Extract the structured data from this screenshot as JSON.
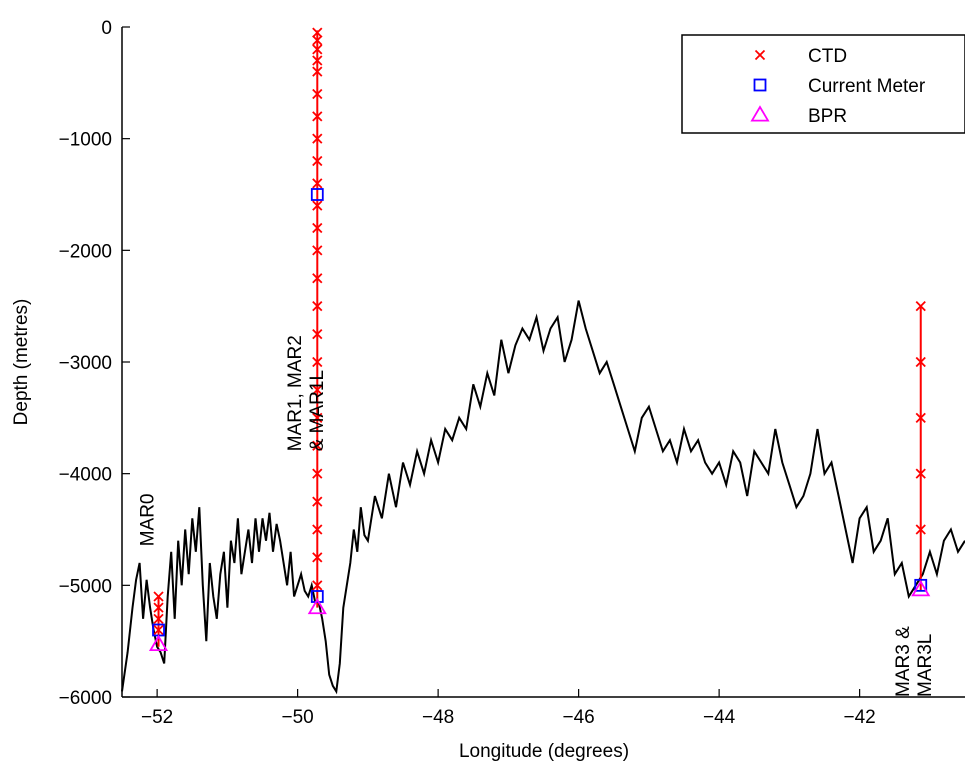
{
  "chart_data": {
    "type": "line",
    "title": "",
    "xlabel": "Longitude (degrees)",
    "ylabel": "Depth (metres)",
    "xlim": [
      -52.5,
      -40.5
    ],
    "ylim": [
      -6000,
      0
    ],
    "xticks": [
      -52,
      -50,
      -48,
      -46,
      -44,
      -42
    ],
    "xtick_labels": [
      "−52",
      "−50",
      "−48",
      "−46",
      "−44",
      "−42"
    ],
    "yticks": [
      0,
      -1000,
      -2000,
      -3000,
      -4000,
      -5000,
      -6000
    ],
    "ytick_labels": [
      "0",
      "−1000",
      "−2000",
      "−3000",
      "−4000",
      "−5000",
      "−6000"
    ],
    "grid": false,
    "legend": {
      "placement": "top-right",
      "entries": [
        "CTD",
        "Current Meter",
        "BPR"
      ]
    },
    "series": [
      {
        "name": "",
        "kind": "bathymetry",
        "color": "#000000",
        "x": [
          -52.5,
          -52.42,
          -52.35,
          -52.3,
          -52.25,
          -52.2,
          -52.15,
          -52.1,
          -52.05,
          -52.0,
          -51.95,
          -51.9,
          -51.85,
          -51.8,
          -51.75,
          -51.7,
          -51.65,
          -51.6,
          -51.55,
          -51.5,
          -51.45,
          -51.4,
          -51.35,
          -51.3,
          -51.25,
          -51.2,
          -51.15,
          -51.1,
          -51.05,
          -51.0,
          -50.95,
          -50.9,
          -50.85,
          -50.8,
          -50.75,
          -50.7,
          -50.65,
          -50.6,
          -50.55,
          -50.5,
          -50.45,
          -50.4,
          -50.35,
          -50.3,
          -50.25,
          -50.2,
          -50.15,
          -50.1,
          -50.05,
          -50.0,
          -49.95,
          -49.9,
          -49.85,
          -49.8,
          -49.75,
          -49.7,
          -49.65,
          -49.6,
          -49.55,
          -49.5,
          -49.45,
          -49.4,
          -49.35,
          -49.3,
          -49.25,
          -49.2,
          -49.15,
          -49.1,
          -49.05,
          -49.0,
          -48.9,
          -48.8,
          -48.7,
          -48.6,
          -48.5,
          -48.4,
          -48.3,
          -48.2,
          -48.1,
          -48.0,
          -47.9,
          -47.8,
          -47.7,
          -47.6,
          -47.5,
          -47.4,
          -47.3,
          -47.2,
          -47.1,
          -47.0,
          -46.9,
          -46.8,
          -46.7,
          -46.6,
          -46.5,
          -46.4,
          -46.3,
          -46.2,
          -46.1,
          -46.0,
          -45.9,
          -45.8,
          -45.7,
          -45.6,
          -45.5,
          -45.4,
          -45.3,
          -45.2,
          -45.1,
          -45.0,
          -44.9,
          -44.8,
          -44.7,
          -44.6,
          -44.5,
          -44.4,
          -44.3,
          -44.2,
          -44.1,
          -44.0,
          -43.9,
          -43.8,
          -43.7,
          -43.6,
          -43.5,
          -43.4,
          -43.3,
          -43.2,
          -43.1,
          -43.0,
          -42.9,
          -42.8,
          -42.7,
          -42.6,
          -42.5,
          -42.4,
          -42.3,
          -42.2,
          -42.1,
          -42.0,
          -41.9,
          -41.8,
          -41.7,
          -41.6,
          -41.5,
          -41.4,
          -41.3,
          -41.2,
          -41.1,
          -41.0,
          -40.9,
          -40.8,
          -40.7,
          -40.6,
          -40.5
        ],
        "y": [
          -5950,
          -5600,
          -5200,
          -4950,
          -4800,
          -5300,
          -4950,
          -5200,
          -5400,
          -5550,
          -5600,
          -5700,
          -5100,
          -4700,
          -5300,
          -4600,
          -5000,
          -4500,
          -4900,
          -4400,
          -4700,
          -4300,
          -5000,
          -5500,
          -4800,
          -5100,
          -5300,
          -4900,
          -4700,
          -5200,
          -4600,
          -4800,
          -4400,
          -4900,
          -4700,
          -4500,
          -4800,
          -4400,
          -4700,
          -4400,
          -4600,
          -4350,
          -4700,
          -4450,
          -4600,
          -4800,
          -5000,
          -4700,
          -5100,
          -5000,
          -4900,
          -5050,
          -5100,
          -5000,
          -5150,
          -5150,
          -5300,
          -5500,
          -5800,
          -5900,
          -5950,
          -5700,
          -5200,
          -5000,
          -4800,
          -4500,
          -4700,
          -4300,
          -4550,
          -4600,
          -4200,
          -4400,
          -4000,
          -4300,
          -3900,
          -4100,
          -3800,
          -4000,
          -3700,
          -3900,
          -3600,
          -3700,
          -3500,
          -3600,
          -3200,
          -3400,
          -3100,
          -3300,
          -2800,
          -3100,
          -2850,
          -2700,
          -2800,
          -2600,
          -2900,
          -2700,
          -2600,
          -3000,
          -2800,
          -2450,
          -2700,
          -2900,
          -3100,
          -3000,
          -3200,
          -3400,
          -3600,
          -3800,
          -3500,
          -3400,
          -3600,
          -3800,
          -3700,
          -3900,
          -3600,
          -3800,
          -3700,
          -3900,
          -4000,
          -3900,
          -4100,
          -3800,
          -3900,
          -4200,
          -3800,
          -3900,
          -4000,
          -3600,
          -3900,
          -4100,
          -4300,
          -4200,
          -4000,
          -3600,
          -4000,
          -3900,
          -4200,
          -4500,
          -4800,
          -4400,
          -4300,
          -4700,
          -4600,
          -4400,
          -4900,
          -4800,
          -5100,
          -5000,
          -4900,
          -4700,
          -4900,
          -4600,
          -4500,
          -4700,
          -4600
        ]
      },
      {
        "name": "",
        "kind": "mooring-line",
        "color": "#ff0000",
        "segments": [
          {
            "x": [
              -51.98,
              -51.98
            ],
            "y": [
              -5550,
              -5100
            ]
          },
          {
            "x": [
              -49.72,
              -49.72
            ],
            "y": [
              -5200,
              -30
            ]
          },
          {
            "x": [
              -41.13,
              -41.13
            ],
            "y": [
              -5050,
              -2500
            ]
          }
        ]
      },
      {
        "name": "CTD",
        "kind": "markers",
        "marker": "x",
        "color": "#ff0000",
        "points": [
          [
            -51.98,
            -5100
          ],
          [
            -51.98,
            -5200
          ],
          [
            -51.98,
            -5300
          ],
          [
            -51.98,
            -5400
          ],
          [
            -49.72,
            -50
          ],
          [
            -49.72,
            -120
          ],
          [
            -49.72,
            -200
          ],
          [
            -49.72,
            -300
          ],
          [
            -49.72,
            -400
          ],
          [
            -49.72,
            -600
          ],
          [
            -49.72,
            -800
          ],
          [
            -49.72,
            -1000
          ],
          [
            -49.72,
            -1200
          ],
          [
            -49.72,
            -1400
          ],
          [
            -49.72,
            -1600
          ],
          [
            -49.72,
            -1800
          ],
          [
            -49.72,
            -2000
          ],
          [
            -49.72,
            -2250
          ],
          [
            -49.72,
            -2500
          ],
          [
            -49.72,
            -2750
          ],
          [
            -49.72,
            -3000
          ],
          [
            -49.72,
            -3250
          ],
          [
            -49.72,
            -3500
          ],
          [
            -49.72,
            -3750
          ],
          [
            -49.72,
            -4000
          ],
          [
            -49.72,
            -4250
          ],
          [
            -49.72,
            -4500
          ],
          [
            -49.72,
            -4750
          ],
          [
            -49.72,
            -5000
          ],
          [
            -41.13,
            -2500
          ],
          [
            -41.13,
            -3000
          ],
          [
            -41.13,
            -3500
          ],
          [
            -41.13,
            -4000
          ],
          [
            -41.13,
            -4500
          ]
        ]
      },
      {
        "name": "Current Meter",
        "kind": "markers",
        "marker": "square",
        "color": "#0000ff",
        "points": [
          [
            -51.98,
            -5400
          ],
          [
            -49.72,
            -1500
          ],
          [
            -49.72,
            -5100
          ],
          [
            -41.13,
            -5000
          ]
        ]
      },
      {
        "name": "BPR",
        "kind": "markers",
        "marker": "triangle",
        "color": "#ff00ff",
        "points": [
          [
            -51.98,
            -5530
          ],
          [
            -49.72,
            -5200
          ],
          [
            -41.13,
            -5040
          ]
        ]
      }
    ],
    "annotations": [
      {
        "text": [
          "MAR0"
        ],
        "x": -52.05,
        "y": -4650
      },
      {
        "text": [
          "MAR1, MAR2",
          "& MAR1L"
        ],
        "x": -49.95,
        "y": -3800
      },
      {
        "text": [
          "MAR3 &",
          "MAR3L"
        ],
        "x": -41.3,
        "y": -6000
      }
    ]
  }
}
